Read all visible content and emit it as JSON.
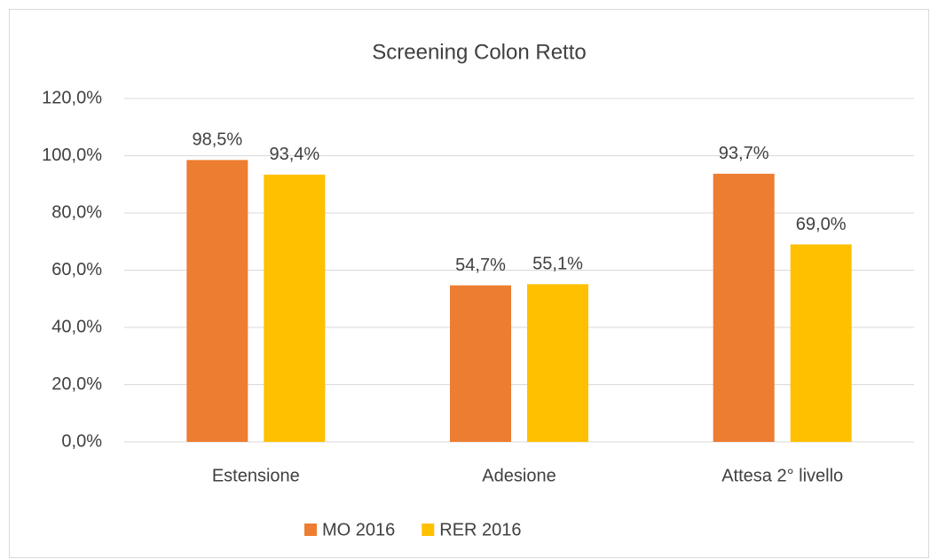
{
  "chart_data": {
    "type": "bar",
    "title": "Screening Colon Retto",
    "categories": [
      "Estensione",
      "Adesione",
      "Attesa 2° livello"
    ],
    "series": [
      {
        "name": "MO 2016",
        "color": "#ed7d31",
        "values": [
          98.5,
          54.7,
          93.7
        ],
        "value_labels": [
          "98,5%",
          "54,7%",
          "93,7%"
        ]
      },
      {
        "name": "RER 2016",
        "color": "#ffc000",
        "values": [
          93.4,
          55.1,
          69.0
        ],
        "value_labels": [
          "93,4%",
          "55,1%",
          "69,0%"
        ]
      }
    ],
    "ylim": [
      0,
      120
    ],
    "yticks": [
      {
        "value": 0,
        "label": "0,0%"
      },
      {
        "value": 20,
        "label": "20,0%"
      },
      {
        "value": 40,
        "label": "40,0%"
      },
      {
        "value": 60,
        "label": "60,0%"
      },
      {
        "value": 80,
        "label": "80,0%"
      },
      {
        "value": 100,
        "label": "100,0%"
      },
      {
        "value": 120,
        "label": "120,0%"
      }
    ],
    "grid": true,
    "legend": "bottom"
  }
}
